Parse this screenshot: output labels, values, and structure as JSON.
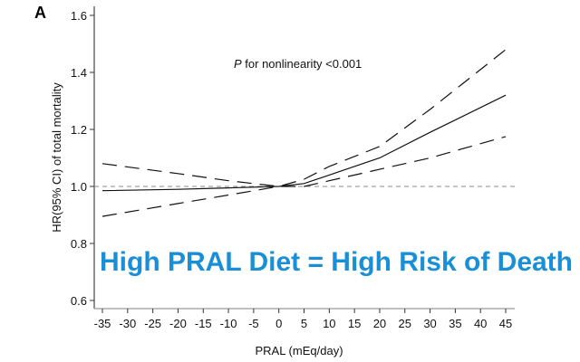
{
  "chart_data": {
    "type": "line",
    "panel_label": "A",
    "xlabel": "PRAL (mEq/day)",
    "ylabel": "HR(95% CI) of total mortality",
    "xlim": [
      -37,
      46
    ],
    "ylim": [
      0.58,
      1.63
    ],
    "xticks": [
      -35,
      -30,
      -25,
      -20,
      -15,
      -10,
      -5,
      0,
      5,
      10,
      15,
      20,
      25,
      30,
      35,
      40,
      45
    ],
    "yticks": [
      0.6,
      0.8,
      1.0,
      1.2,
      1.4,
      1.6
    ],
    "ytick_labels": [
      "0.6",
      "0.8",
      "1.0",
      "1.2",
      "1.4",
      "1.6"
    ],
    "annotation": {
      "italic": "P",
      "rest": " for nonlinearity <0.001"
    },
    "overlay_text": "High PRAL Diet = High Risk of Death",
    "overlay_color": "#1a8fd6",
    "reference_line": 1.0,
    "grid": false,
    "series": [
      {
        "style": "solid",
        "x": [
          -35,
          -20,
          -10,
          0,
          5,
          10,
          20,
          30,
          45
        ],
        "y": [
          0.985,
          0.99,
          0.995,
          1.0,
          1.01,
          1.04,
          1.1,
          1.19,
          1.32
        ]
      },
      {
        "style": "dashed",
        "x": [
          -35,
          -20,
          -10,
          0,
          5,
          10,
          20,
          30,
          45
        ],
        "y": [
          1.08,
          1.045,
          1.02,
          1.0,
          1.025,
          1.07,
          1.14,
          1.27,
          1.48
        ]
      },
      {
        "style": "dashed",
        "x": [
          -35,
          -20,
          -10,
          0,
          5,
          10,
          20,
          30,
          45
        ],
        "y": [
          0.895,
          0.94,
          0.97,
          1.0,
          1.0,
          1.02,
          1.06,
          1.1,
          1.175
        ]
      }
    ]
  }
}
